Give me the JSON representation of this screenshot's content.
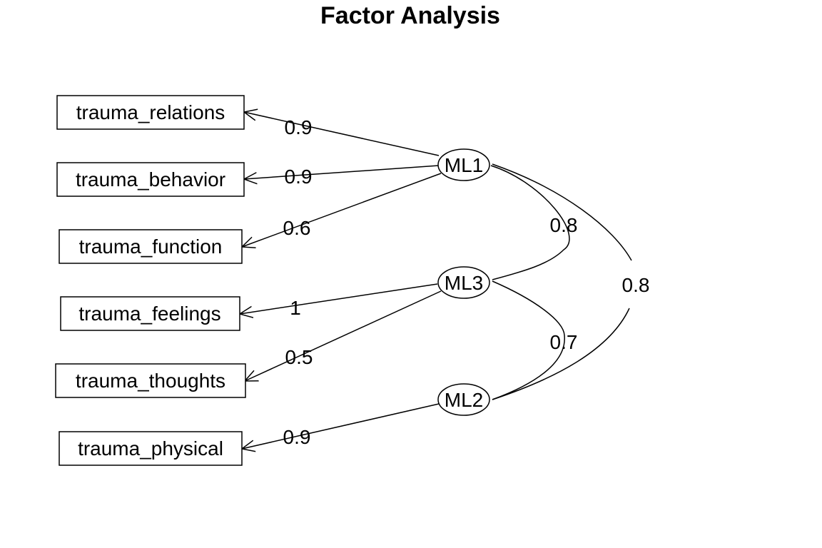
{
  "title": "Factor Analysis",
  "variables": [
    {
      "id": "relations",
      "label": "trauma_relations"
    },
    {
      "id": "behavior",
      "label": "trauma_behavior"
    },
    {
      "id": "function",
      "label": "trauma_function"
    },
    {
      "id": "feelings",
      "label": "trauma_feelings"
    },
    {
      "id": "thoughts",
      "label": "trauma_thoughts"
    },
    {
      "id": "physical",
      "label": "trauma_physical"
    }
  ],
  "factors": [
    {
      "id": "ML1",
      "label": "ML1"
    },
    {
      "id": "ML3",
      "label": "ML3"
    },
    {
      "id": "ML2",
      "label": "ML2"
    }
  ],
  "loadings": [
    {
      "factor": "ML1",
      "variable": "relations",
      "label": "0.9"
    },
    {
      "factor": "ML1",
      "variable": "behavior",
      "label": "0.9"
    },
    {
      "factor": "ML1",
      "variable": "function",
      "label": "0.6"
    },
    {
      "factor": "ML3",
      "variable": "feelings",
      "label": "1"
    },
    {
      "factor": "ML3",
      "variable": "thoughts",
      "label": "0.5"
    },
    {
      "factor": "ML2",
      "variable": "physical",
      "label": "0.9"
    }
  ],
  "correlations": [
    {
      "from": "ML1",
      "to": "ML3",
      "label": "0.8"
    },
    {
      "from": "ML3",
      "to": "ML2",
      "label": "0.7"
    },
    {
      "from": "ML1",
      "to": "ML2",
      "label": "0.8"
    }
  ]
}
